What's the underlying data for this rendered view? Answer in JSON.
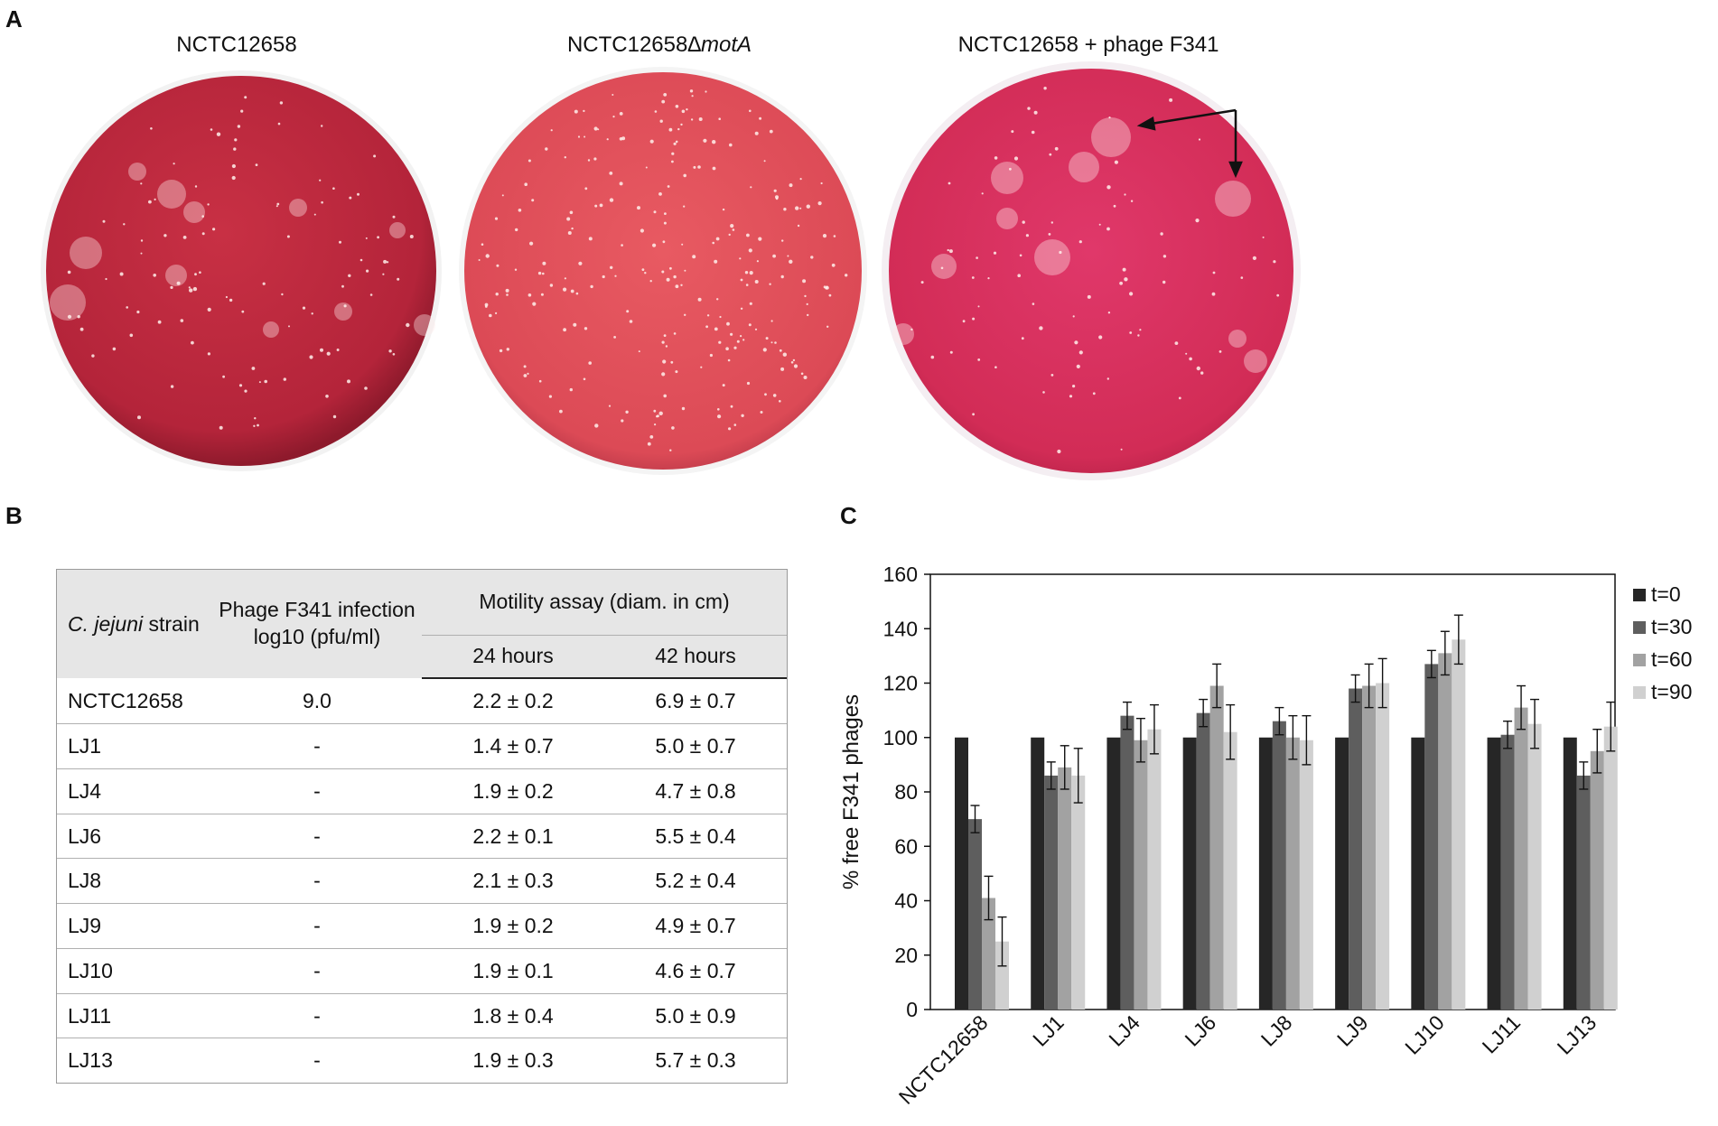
{
  "panels": {
    "a": "A",
    "b": "B",
    "c": "C"
  },
  "plates": {
    "titles": [
      {
        "text": "NCTC12658",
        "italic": ""
      },
      {
        "text": "NCTC12658",
        "italic": "∆motA"
      },
      {
        "text": "NCTC12658 + phage F341",
        "italic": ""
      }
    ],
    "colors": {
      "plate1": "#c3283c",
      "plate2": "#e0505a",
      "plate3": "#d8305a"
    }
  },
  "table": {
    "headers": {
      "strain": "C. jejuni",
      "strain_suffix": " strain",
      "phage": "Phage F341 infection log10 (pfu/ml)",
      "motility": "Motility assay (diam. in cm)",
      "h24": "24 hours",
      "h42": "42 hours"
    },
    "rows": [
      {
        "strain": "NCTC12658",
        "phage": "9.0",
        "h24": "2.2 ± 0.2",
        "h42": "6.9 ± 0.7"
      },
      {
        "strain": "LJ1",
        "phage": "-",
        "h24": "1.4 ± 0.7",
        "h42": "5.0 ± 0.7"
      },
      {
        "strain": "LJ4",
        "phage": "-",
        "h24": "1.9 ± 0.2",
        "h42": "4.7 ± 0.8"
      },
      {
        "strain": "LJ6",
        "phage": "-",
        "h24": "2.2 ± 0.1",
        "h42": "5.5 ± 0.4"
      },
      {
        "strain": "LJ8",
        "phage": "-",
        "h24": "2.1 ± 0.3",
        "h42": "5.2 ± 0.4"
      },
      {
        "strain": "LJ9",
        "phage": "-",
        "h24": "1.9 ± 0.2",
        "h42": "4.9 ± 0.7"
      },
      {
        "strain": "LJ10",
        "phage": "-",
        "h24": "1.9 ± 0.1",
        "h42": "4.6 ± 0.7"
      },
      {
        "strain": "LJ11",
        "phage": "-",
        "h24": "1.8 ± 0.4",
        "h42": "5.0 ± 0.9"
      },
      {
        "strain": "LJ13",
        "phage": "-",
        "h24": "1.9 ± 0.3",
        "h42": "5.7 ± 0.3"
      }
    ]
  },
  "chart_data": {
    "type": "bar",
    "title": "",
    "xlabel": "",
    "ylabel": "% free F341 phages",
    "ylim": [
      0,
      160
    ],
    "yticks": [
      0,
      20,
      40,
      60,
      80,
      100,
      120,
      140,
      160
    ],
    "categories": [
      "NCTC12658",
      "LJ1",
      "LJ4",
      "LJ6",
      "LJ8",
      "LJ9",
      "LJ10",
      "LJ11",
      "LJ13"
    ],
    "legend_position": "right",
    "series": [
      {
        "name": "t=0",
        "color": "#262626",
        "values": [
          100,
          100,
          100,
          100,
          100,
          100,
          100,
          100,
          100
        ],
        "errors": [
          0,
          0,
          0,
          0,
          0,
          0,
          0,
          0,
          0
        ]
      },
      {
        "name": "t=30",
        "color": "#5e5e5e",
        "values": [
          70,
          86,
          108,
          109,
          106,
          118,
          127,
          101,
          86
        ],
        "errors": [
          5,
          5,
          5,
          5,
          5,
          5,
          5,
          5,
          5
        ]
      },
      {
        "name": "t=60",
        "color": "#a2a2a2",
        "values": [
          41,
          89,
          99,
          119,
          100,
          119,
          131,
          111,
          95
        ],
        "errors": [
          8,
          8,
          8,
          8,
          8,
          8,
          8,
          8,
          8
        ]
      },
      {
        "name": "t=90",
        "color": "#d0d0d0",
        "values": [
          25,
          86,
          103,
          102,
          99,
          120,
          136,
          105,
          104
        ],
        "errors": [
          9,
          10,
          9,
          10,
          9,
          9,
          9,
          9,
          9
        ]
      }
    ]
  }
}
